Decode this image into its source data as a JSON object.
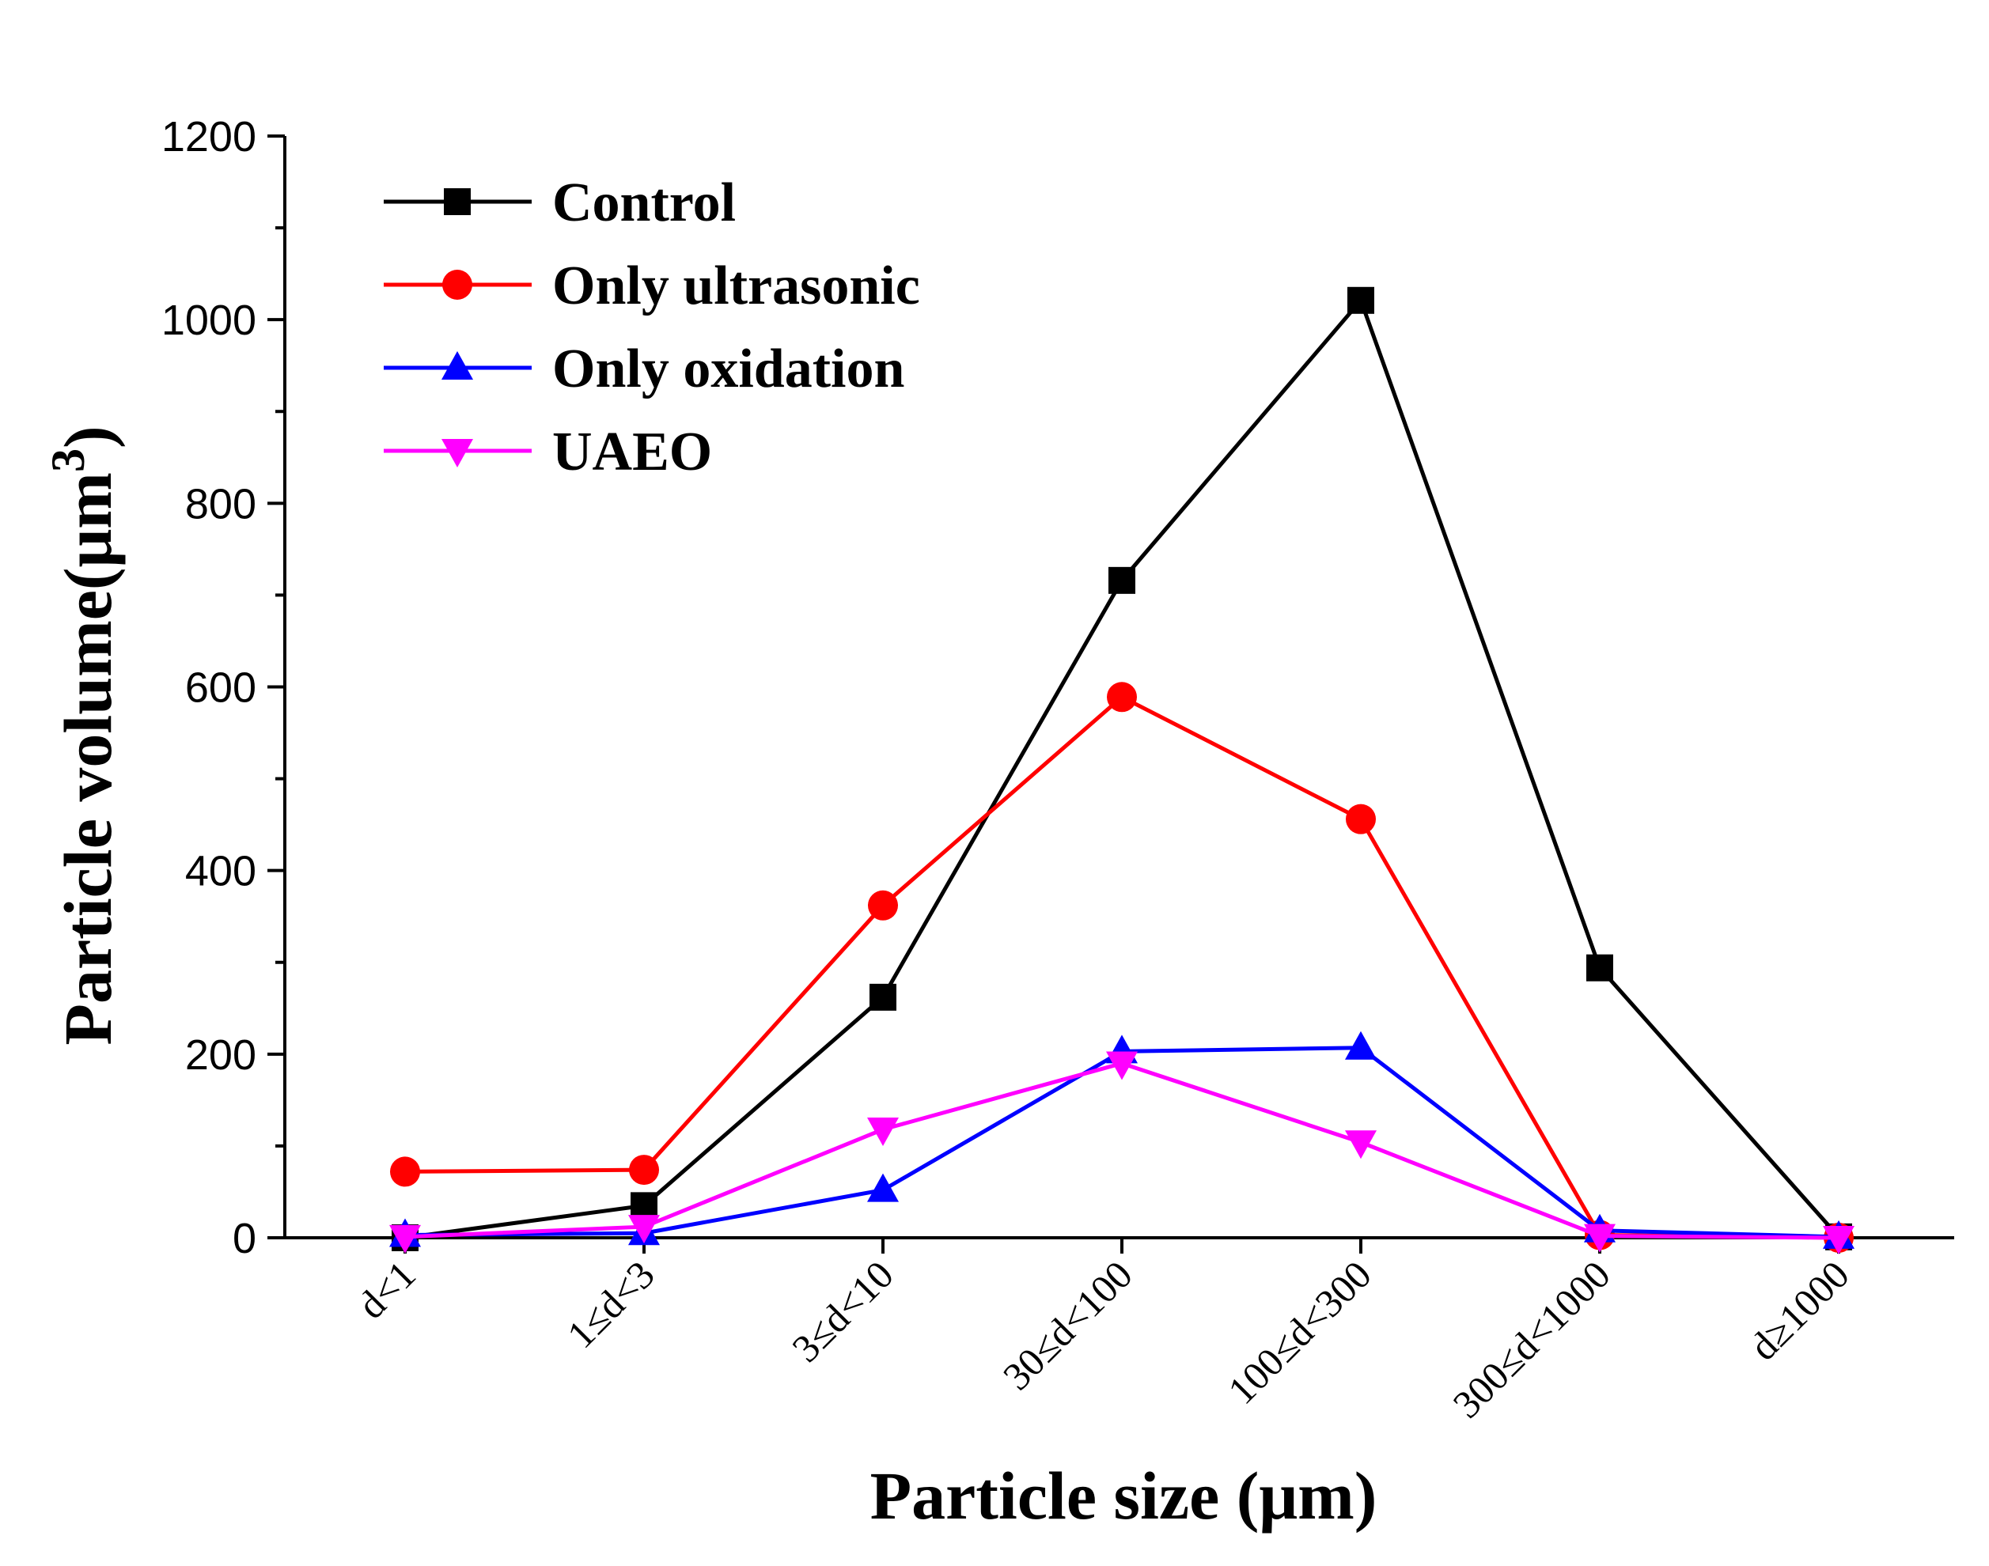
{
  "chart_data": {
    "type": "line",
    "title": "",
    "xlabel": "Particle size (μm)",
    "ylabel": "Particle volume(μm",
    "ylabel_superscript": "3",
    "ylabel_close": ")",
    "categories": [
      "d<1",
      "1≤d<3",
      "3≤d<10",
      "30≤d<100",
      "100≤d<300",
      "300≤d<1000",
      "d≥1000"
    ],
    "ylim": [
      0,
      1200
    ],
    "yticks": [
      0,
      200,
      400,
      600,
      800,
      1000,
      1200
    ],
    "ytick_labels": [
      "0",
      "200",
      "400",
      "600",
      "800",
      "1000",
      "1200"
    ],
    "grid": false,
    "legend_position": "top-left",
    "series": [
      {
        "name": "Control",
        "color": "#000000",
        "marker": "square",
        "values": [
          0,
          35,
          262,
          716,
          1021,
          294,
          1
        ]
      },
      {
        "name": "Only ultrasonic",
        "color": "#ff0000",
        "marker": "circle",
        "values": [
          72,
          74,
          362,
          589,
          456,
          3,
          0
        ]
      },
      {
        "name": "Only oxidation",
        "color": "#0000ff",
        "marker": "triangle-up",
        "values": [
          3,
          5,
          52,
          203,
          207,
          8,
          1
        ]
      },
      {
        "name": "UAEO",
        "color": "#ff00ff",
        "marker": "triangle-down",
        "values": [
          1,
          12,
          118,
          190,
          104,
          2,
          0
        ]
      }
    ]
  }
}
